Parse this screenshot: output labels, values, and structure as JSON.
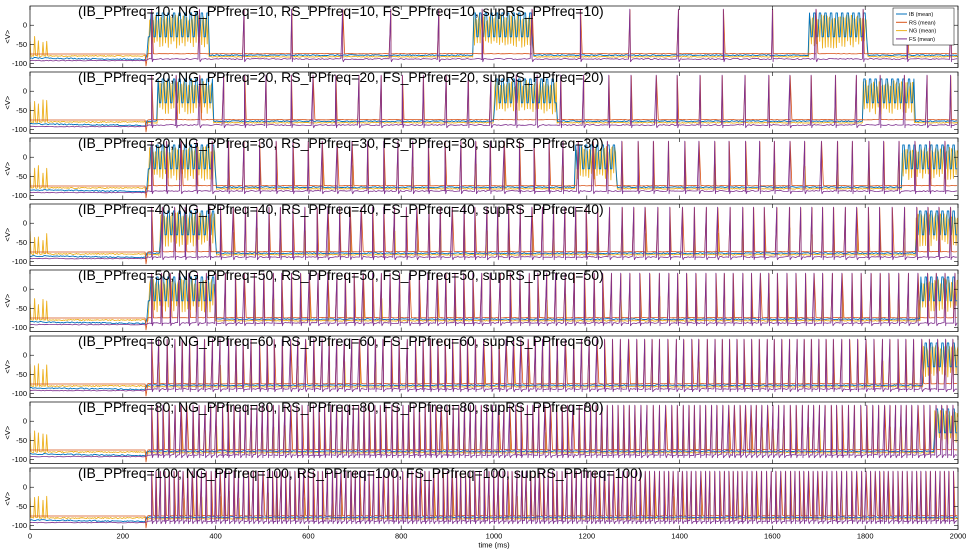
{
  "chart_data": {
    "type": "line",
    "xlabel": "time (ms)",
    "x_ticks": [
      "0",
      "200",
      "400",
      "600",
      "800",
      "1000",
      "1200",
      "1400",
      "1600",
      "1800",
      "2000"
    ],
    "xlim": [
      0,
      2000
    ],
    "ylabel": "<V>",
    "y_ticks": [
      "0",
      "-50",
      "-100"
    ],
    "ylim": [
      -110,
      50
    ],
    "grid": false,
    "legend_position": "top-right",
    "series": [
      {
        "name": "IB (mean)",
        "color": "#0072bd"
      },
      {
        "name": "RS (mean)",
        "color": "#d95319"
      },
      {
        "name": "NG (mean)",
        "color": "#edb120"
      },
      {
        "name": "FS (mean)",
        "color": "#7e2f8e"
      }
    ],
    "panels": [
      {
        "title": "(IB_PPfreq=10; NG_PPfreq=10, RS_PPfreq=10, FS_PPfreq=10, supRS_PPfreq=10)",
        "freq": 10,
        "bursts": [
          [
            255,
            385
          ],
          [
            955,
            1085
          ],
          [
            1680,
            1805
          ]
        ]
      },
      {
        "title": "(IB_PPfreq=20; NG_PPfreq=20, RS_PPfreq=20, FS_PPfreq=20, supRS_PPfreq=20)",
        "freq": 20,
        "bursts": [
          [
            275,
            395
          ],
          [
            1000,
            1135
          ],
          [
            1795,
            1905
          ]
        ]
      },
      {
        "title": "(IB_PPfreq=30; NG_PPfreq=30, RS_PPfreq=30, FS_PPfreq=30, supRS_PPfreq=30)",
        "freq": 30,
        "bursts": [
          [
            255,
            400
          ],
          [
            1175,
            1265
          ],
          [
            1880,
            2000
          ]
        ]
      },
      {
        "title": "(IB_PPfreq=40; NG_PPfreq=40, RS_PPfreq=40, FS_PPfreq=40, supRS_PPfreq=40)",
        "freq": 40,
        "bursts": [
          [
            280,
            400
          ],
          [
            1910,
            2000
          ]
        ]
      },
      {
        "title": "(IB_PPfreq=50; NG_PPfreq=50, RS_PPfreq=50, FS_PPfreq=50, supRS_PPfreq=50)",
        "freq": 50,
        "bursts": [
          [
            255,
            400
          ],
          [
            1920,
            2000
          ]
        ]
      },
      {
        "title": "(IB_PPfreq=60; NG_PPfreq=60, RS_PPfreq=60, FS_PPfreq=60, supRS_PPfreq=60)",
        "freq": 60,
        "bursts": [
          [
            1925,
            2000
          ]
        ]
      },
      {
        "title": "(IB_PPfreq=80; NG_PPfreq=80, RS_PPfreq=80, FS_PPfreq=80, supRS_PPfreq=80)",
        "freq": 80,
        "bursts": [
          [
            1950,
            2000
          ]
        ]
      },
      {
        "title": "(IB_PPfreq=100; NG_PPfreq=100, RS_PPfreq=100, FS_PPfreq=100, supRS_PPfreq=100)",
        "freq": 100,
        "bursts": []
      }
    ]
  }
}
